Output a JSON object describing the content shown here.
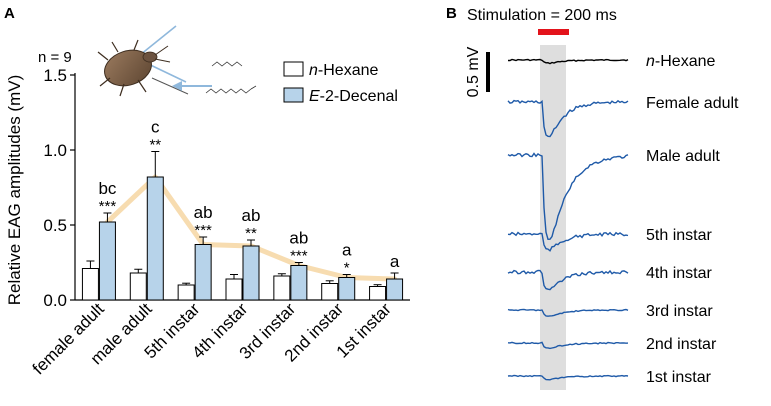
{
  "colors": {
    "hexane_fill": "#ffffff",
    "decenal_fill": "#b7d3ea",
    "trend_line": "#f7dcb0",
    "trace": "#1f5aa8",
    "hexane_trace": "#000000",
    "stim_bar": "#e3131b",
    "stim_window": "#d9d9d9"
  },
  "chart_data": [
    {
      "panel": "A",
      "type": "bar",
      "annotation_n": "n = 9",
      "ylabel": "Relative EAG amplitudes (mV)",
      "ylim": [
        0,
        1.5
      ],
      "yticks": [
        "0.0",
        "0.5",
        "1.0",
        "1.5"
      ],
      "categories": [
        "female adult",
        "male adult",
        "5th instar",
        "4th instar",
        "3rd instar",
        "2nd instar",
        "1st instar"
      ],
      "series": [
        {
          "name": "n-Hexane",
          "name_italic": "n",
          "name_rest": "-Hexane",
          "values": [
            0.21,
            0.18,
            0.1,
            0.14,
            0.16,
            0.11,
            0.09
          ],
          "errors": [
            0.05,
            0.025,
            0.012,
            0.03,
            0.015,
            0.018,
            0.012
          ]
        },
        {
          "name": "E-2-Decenal",
          "name_italic": "E",
          "name_rest": "-2-Decenal",
          "values": [
            0.52,
            0.82,
            0.37,
            0.36,
            0.23,
            0.15,
            0.14
          ],
          "errors": [
            0.06,
            0.17,
            0.05,
            0.04,
            0.02,
            0.02,
            0.04
          ]
        }
      ],
      "significance_stars": [
        "***",
        "**",
        "***",
        "**",
        "***",
        "*",
        ""
      ],
      "letters": [
        "bc",
        "c",
        "ab",
        "ab",
        "ab",
        "a",
        "a"
      ]
    },
    {
      "panel": "B",
      "type": "line",
      "stimulation_label": "Stimulation = 200 ms",
      "scale_label": "0.5 mV",
      "traces": [
        {
          "label": "n-Hexane",
          "label_italic": "n",
          "label_rest": "-Hexane",
          "peak_mv": -0.05
        },
        {
          "label": "Female adult",
          "peak_mv": -0.55
        },
        {
          "label": "Male adult",
          "peak_mv": -1.2
        },
        {
          "label": "5th instar",
          "peak_mv": -0.25
        },
        {
          "label": "4th instar",
          "peak_mv": -0.28
        },
        {
          "label": "3rd instar",
          "peak_mv": -0.1
        },
        {
          "label": "2nd instar",
          "peak_mv": -0.08
        },
        {
          "label": "1st instar",
          "peak_mv": -0.06
        }
      ]
    }
  ]
}
